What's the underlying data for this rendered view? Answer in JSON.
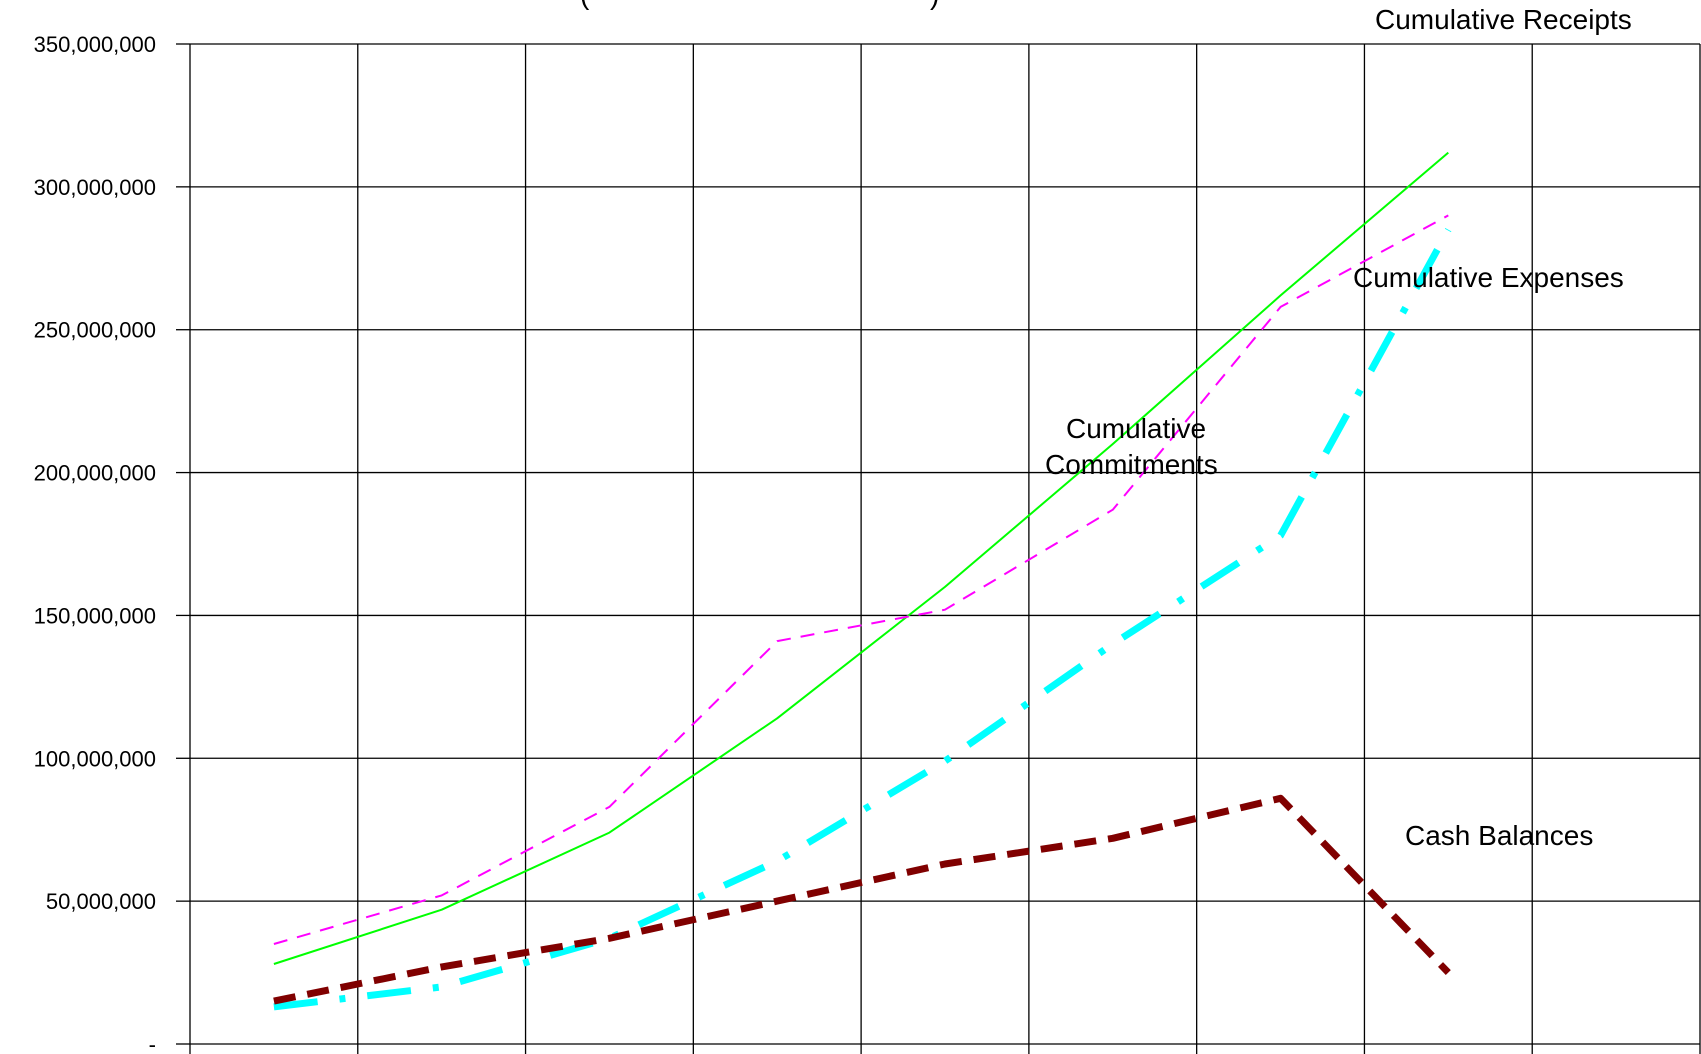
{
  "chart_data": {
    "type": "line",
    "title": "",
    "xlabel": "",
    "ylabel": "",
    "x": [
      1,
      2,
      3,
      4,
      5,
      6,
      7,
      8
    ],
    "ylim": [
      0,
      350000000
    ],
    "yticks": [
      0,
      50000000,
      100000000,
      150000000,
      200000000,
      250000000,
      300000000,
      350000000
    ],
    "ytick_labels": [
      "-",
      "50,000,000",
      "100,000,000",
      "150,000,000",
      "200,000,000",
      "250,000,000",
      "300,000,000",
      "350,000,000"
    ],
    "grid": true,
    "legend": "none",
    "series": [
      {
        "name": "Cumulative Receipts",
        "color": "#00ff00",
        "style": "solid",
        "values": [
          28000000,
          47000000,
          74000000,
          114000000,
          160000000,
          210000000,
          262000000,
          312000000
        ]
      },
      {
        "name": "Cumulative Expenses",
        "color": "#ff00ff",
        "style": "dashed",
        "values": [
          35000000,
          52000000,
          83000000,
          141000000,
          152000000,
          187000000,
          258000000,
          290000000
        ]
      },
      {
        "name": "Cumulative Commitments",
        "color": "#00ffff",
        "style": "dashdot",
        "values": [
          13000000,
          20000000,
          37000000,
          64000000,
          99000000,
          140000000,
          178000000,
          285000000
        ]
      },
      {
        "name": "Cash Balances",
        "color": "#800000",
        "style": "dashed-bold",
        "values": [
          15000000,
          27000000,
          37000000,
          50000000,
          63000000,
          72000000,
          86000000,
          25000000
        ]
      }
    ],
    "annotations": [
      {
        "lines": [
          "Cumulative Receipts"
        ],
        "series": "Cumulative Receipts"
      },
      {
        "lines": [
          "Cumulative Expenses"
        ],
        "series": "Cumulative Expenses"
      },
      {
        "lines": [
          "Cumulative",
          "Commitments"
        ],
        "series": "Cumulative Commitments"
      },
      {
        "lines": [
          "Cash Balances"
        ],
        "series": "Cash Balances"
      }
    ]
  }
}
